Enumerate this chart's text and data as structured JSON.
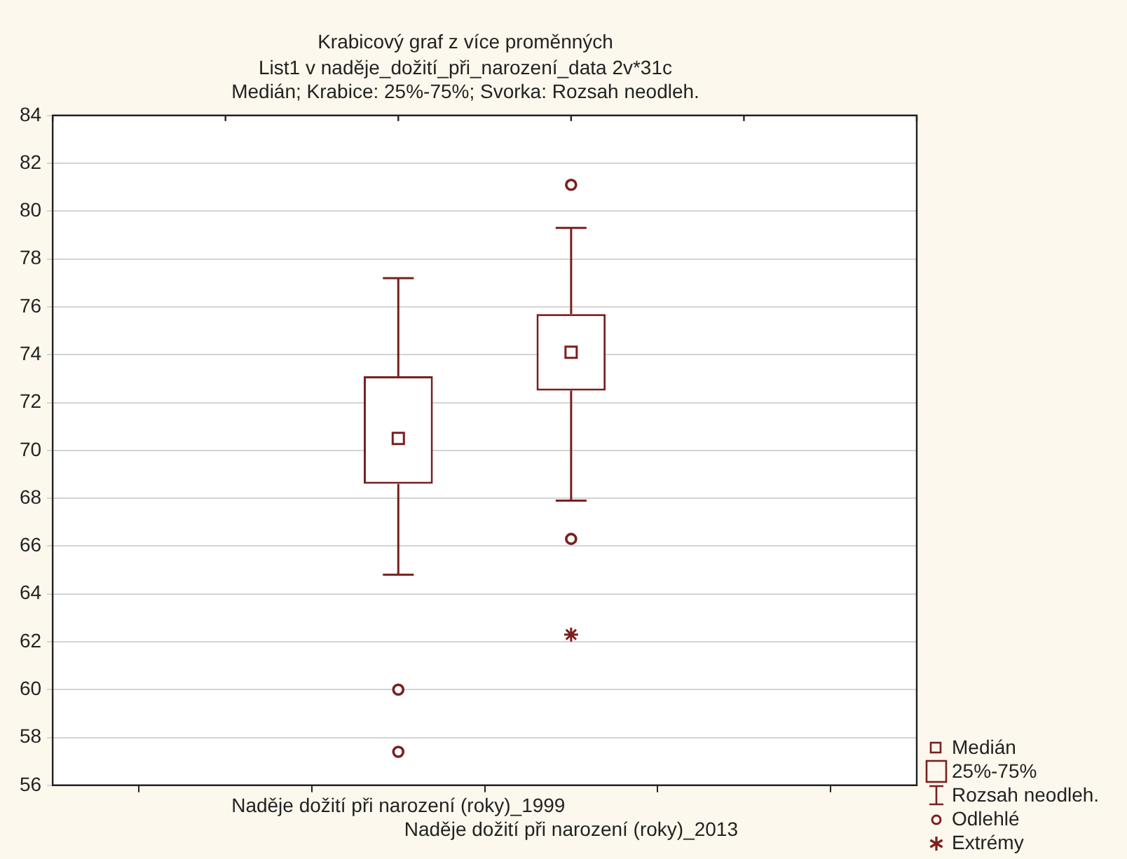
{
  "chart_data": {
    "type": "box",
    "title": "Krabicový graf z více proměnných",
    "subtitle": "List1 v naděje_dožití_při_narození_data 2v*31c\nMedián; Krabice: 25%-75%; Svorka: Rozsah neodleh.",
    "categories": [
      null,
      null,
      "Naděje dožití při narození (roky)_1999",
      "Naděje dožití při narození (roky)_2013",
      null,
      null
    ],
    "series": [
      {
        "color": "#7a1f1f",
        "boxes": [
          null,
          null,
          {
            "low": 64.8,
            "q1": 68.6,
            "median": 70.5,
            "q3": 73.1,
            "high": 77.2,
            "outliers": [
              60.0,
              57.4
            ]
          },
          {
            "low": 67.9,
            "q1": 72.5,
            "median": 74.1,
            "q3": 75.7,
            "high": 79.3,
            "outliers": [
              81.1,
              66.3
            ]
          },
          null,
          null
        ]
      },
      {
        "type": "scatter",
        "name": "Extrémy",
        "color": "#7a1f1f",
        "marker": "cross",
        "x": [
          "Naděje dožití při narození (roky)_2013"
        ],
        "values": [
          62.3
        ]
      }
    ],
    "annotations": [
      "Medián",
      "25%-75%",
      "Rozsah neodleh.",
      "Odlehlé"
    ],
    "ylim": [
      56,
      84
    ],
    "yticks": [
      56,
      58,
      60,
      62,
      64,
      66,
      68,
      70,
      72,
      74,
      76,
      78,
      80,
      82,
      84
    ],
    "grid": "y",
    "legend": "bottom right"
  }
}
